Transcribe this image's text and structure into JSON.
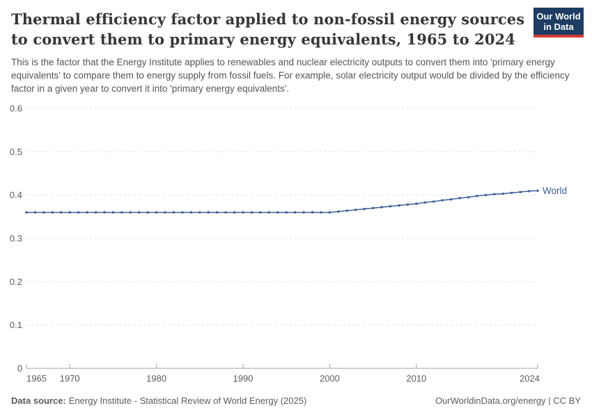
{
  "header": {
    "title_lines": [
      "Thermal efficiency factor applied to non-fossil energy sources",
      "to convert them to primary energy equivalents, 1965 to 2024"
    ],
    "subtitle": "This is the factor that the Energy Institute applies to renewables and nuclear electricity outputs to convert them into 'primary energy equivalents' to compare them to energy supply from fossil fuels. For example, solar electricity output would be divided by the efficiency factor in a given year to convert it into 'primary energy equivalents'."
  },
  "logo": {
    "line1": "Our World",
    "line2": "in Data",
    "bg_color": "#1d3d63",
    "bar_color": "#d73b33"
  },
  "chart_data": {
    "type": "line",
    "title": "Thermal efficiency factor applied to non-fossil energy sources to convert them to primary energy equivalents, 1965 to 2024",
    "x": [
      1965,
      1966,
      1967,
      1968,
      1969,
      1970,
      1971,
      1972,
      1973,
      1974,
      1975,
      1976,
      1977,
      1978,
      1979,
      1980,
      1981,
      1982,
      1983,
      1984,
      1985,
      1986,
      1987,
      1988,
      1989,
      1990,
      1991,
      1992,
      1993,
      1994,
      1995,
      1996,
      1997,
      1998,
      1999,
      2000,
      2001,
      2002,
      2003,
      2004,
      2005,
      2006,
      2007,
      2008,
      2009,
      2010,
      2011,
      2012,
      2013,
      2014,
      2015,
      2016,
      2017,
      2018,
      2019,
      2020,
      2021,
      2022,
      2023,
      2024
    ],
    "series": [
      {
        "name": "World",
        "color": "#3d5c9a",
        "values": [
          0.36,
          0.36,
          0.36,
          0.36,
          0.36,
          0.36,
          0.36,
          0.36,
          0.36,
          0.36,
          0.36,
          0.36,
          0.36,
          0.36,
          0.36,
          0.36,
          0.36,
          0.36,
          0.36,
          0.36,
          0.36,
          0.36,
          0.36,
          0.36,
          0.36,
          0.36,
          0.36,
          0.36,
          0.36,
          0.36,
          0.36,
          0.36,
          0.36,
          0.36,
          0.36,
          0.36,
          0.362,
          0.364,
          0.366,
          0.368,
          0.37,
          0.372,
          0.374,
          0.376,
          0.378,
          0.38,
          0.383,
          0.385,
          0.388,
          0.39,
          0.393,
          0.395,
          0.398,
          0.4,
          0.402,
          0.403,
          0.405,
          0.407,
          0.409,
          0.41
        ]
      }
    ],
    "xlabel": "",
    "ylabel": "",
    "ylim": [
      0,
      0.6
    ],
    "yticks": [
      0,
      0.1,
      0.2,
      0.3,
      0.4,
      0.5,
      0.6
    ],
    "ytick_labels": [
      "0",
      "0.1",
      "0.2",
      "0.3",
      "0.4",
      "0.5",
      "0.6"
    ],
    "xticks": [
      1965,
      1970,
      1980,
      1990,
      2000,
      2010,
      2024
    ],
    "xtick_labels": [
      "1965",
      "1970",
      "1980",
      "1990",
      "2000",
      "2010",
      "2024"
    ],
    "grid": "horizontal-dashed",
    "legend_position": "end-of-line",
    "colors": {
      "gridline": "#dedede",
      "axis": "#a1a1a1",
      "tick_text": "#5b5b5b",
      "series_world": "#3d5c9a"
    }
  },
  "footer": {
    "source_label": "Data source:",
    "source_text": "Energy Institute - Statistical Review of World Energy (2025)",
    "right_text": "OurWorldinData.org/energy | CC BY"
  }
}
